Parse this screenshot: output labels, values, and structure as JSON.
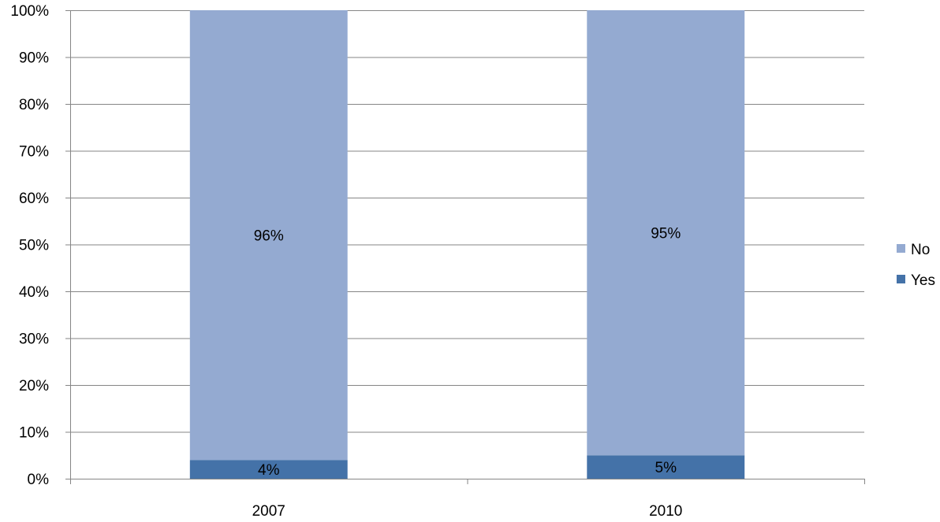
{
  "chart_data": {
    "type": "bar",
    "stacked": true,
    "percent_stacked": true,
    "categories": [
      "2007",
      "2010"
    ],
    "series": [
      {
        "name": "Yes",
        "values": [
          4,
          5
        ],
        "color": "#4472a8",
        "labels": [
          "4%",
          "5%"
        ]
      },
      {
        "name": "No",
        "values": [
          96,
          95
        ],
        "color": "#94aad1",
        "labels": [
          "96%",
          "95%"
        ]
      }
    ],
    "ylim": [
      0,
      100
    ],
    "yticks": [
      "0%",
      "10%",
      "20%",
      "30%",
      "40%",
      "50%",
      "60%",
      "70%",
      "80%",
      "90%",
      "100%"
    ],
    "grid": true,
    "legend_position": "right",
    "legend_order": [
      "No",
      "Yes"
    ],
    "gridline_color": "#868686",
    "axis_color": "#868686"
  }
}
